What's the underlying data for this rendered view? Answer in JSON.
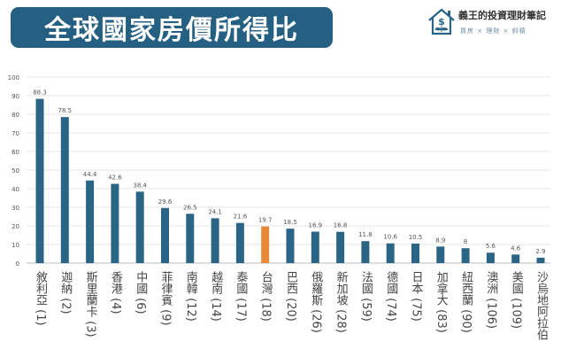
{
  "header": {
    "title": "全球國家房價所得比"
  },
  "logo": {
    "brand": "義王的投資理財筆記",
    "tagline": "買房 × 理財 × 斜槓",
    "icon": "house-dollar-icon"
  },
  "colors": {
    "bar": "#2b6585",
    "highlight": "#e8893a",
    "title_bg": "#256082"
  },
  "chart_data": {
    "type": "bar",
    "title": "全球國家房價所得比",
    "categories": [
      "敘利亞 (1)",
      "迦納 (2)",
      "斯里蘭卡 (3)",
      "香港 (4)",
      "中國 (6)",
      "菲律賓 (9)",
      "南韓 (12)",
      "越南 (14)",
      "泰國 (17)",
      "台灣 (18)",
      "巴西 (20)",
      "俄羅斯 (26)",
      "新加坡 (28)",
      "法國 (59)",
      "德國 (74)",
      "日本 (75)",
      "加拿大 (83)",
      "紐西蘭 (90)",
      "澳洲 (106)",
      "美國 (109)",
      "沙烏地阿拉伯"
    ],
    "values": [
      88.3,
      78.5,
      44.4,
      42.6,
      38.4,
      29.6,
      26.5,
      24.1,
      21.6,
      19.7,
      18.5,
      16.9,
      16.8,
      11.8,
      10.6,
      10.5,
      8.9,
      8,
      5.6,
      4.6,
      2.9
    ],
    "value_labels": [
      "88.3",
      "78.5",
      "44.4",
      "42.6",
      "38.4",
      "29.6",
      "26.5",
      "24.1",
      "21.6",
      "19.7",
      "18.5",
      "16.9",
      "16.8",
      "11.8",
      "10.6",
      "10.5",
      "8.9",
      "8",
      "5.6",
      "4.6",
      "2.9"
    ],
    "highlight_category": "台灣 (18)",
    "yticks": [
      "0",
      "10",
      "20",
      "30",
      "40",
      "50",
      "60",
      "70",
      "80",
      "90",
      "100"
    ],
    "ylim": [
      0,
      100
    ],
    "grid": true
  }
}
